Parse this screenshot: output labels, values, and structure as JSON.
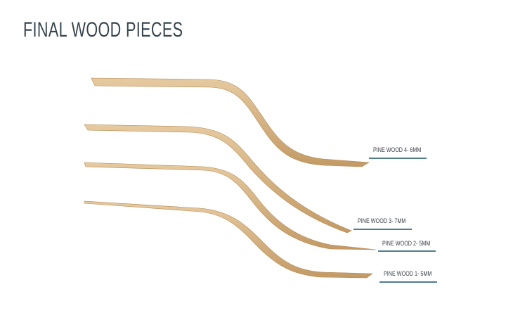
{
  "title": "FINAL WOOD PIECES",
  "pieces": [
    {
      "label": "PINE WOOD 4- 6MM"
    },
    {
      "label": "PINE WOOD 3- 7MM"
    },
    {
      "label": "PINE WOOD 2- 5MM"
    },
    {
      "label": "PINE WOOD 1- 5MM"
    }
  ],
  "colors": {
    "wood": "#d9b98a",
    "wood_edge": "#b48a55",
    "underline": "#4f7d8e",
    "title": "#37454f"
  }
}
